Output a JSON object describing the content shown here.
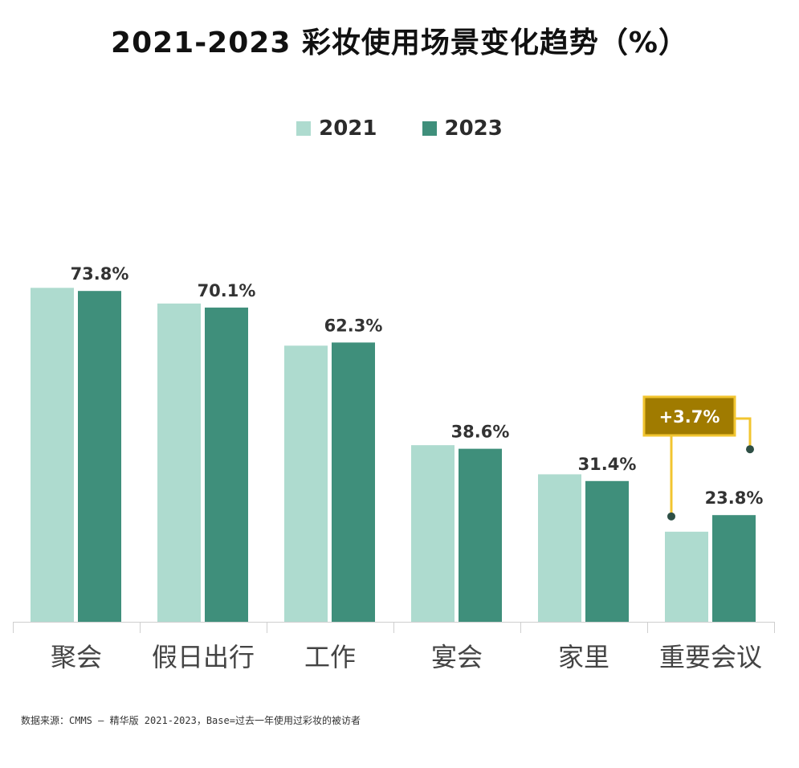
{
  "chart_data": {
    "type": "bar",
    "title": "2021-2023 彩妆使用场景变化趋势（%）",
    "categories": [
      "聚会",
      "假日出行",
      "工作",
      "宴会",
      "家里",
      "重要会议"
    ],
    "series": [
      {
        "name": "2021",
        "color": "#aedbcf",
        "values": [
          74.5,
          71.0,
          61.6,
          39.4,
          32.9,
          20.1
        ]
      },
      {
        "name": "2023",
        "color": "#3f8f7b",
        "values": [
          73.8,
          70.1,
          62.3,
          38.6,
          31.4,
          23.8
        ]
      }
    ],
    "data_labels": [
      "73.8%",
      "70.1%",
      "62.3%",
      "38.6%",
      "31.4%",
      "23.8%"
    ],
    "ylim": [
      0,
      80
    ],
    "legend_position": "top-center",
    "annotation": {
      "text": "+3.7%",
      "category": "重要会议",
      "box_color": "#a07b00",
      "border_color": "#f2c530",
      "line_color": "#f2c530",
      "dot_color": "#2e4f45"
    }
  },
  "footer": {
    "source": "数据来源：CMMS – 精华版 2021-2023，Base=过去一年使用过彩妆的被访者"
  }
}
